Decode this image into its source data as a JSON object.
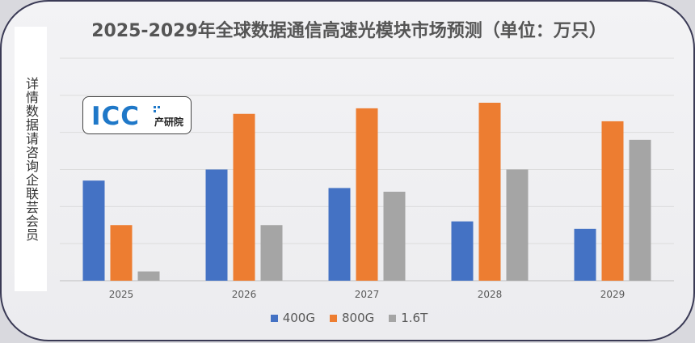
{
  "chart_data": {
    "type": "bar",
    "title": "2025-2029年全球数据通信高速光模块市场预测（单位：万只）",
    "categories": [
      "2025",
      "2026",
      "2027",
      "2028",
      "2029"
    ],
    "series": [
      {
        "name": "400G",
        "color": "#4472c4",
        "values": [
          270,
          300,
          250,
          160,
          140
        ]
      },
      {
        "name": "800G",
        "color": "#ed7d31",
        "values": [
          150,
          450,
          465,
          480,
          430
        ]
      },
      {
        "name": "1.6T",
        "color": "#a5a5a5",
        "values": [
          25,
          150,
          240,
          300,
          380
        ]
      }
    ],
    "ylim": [
      0,
      600
    ],
    "grid": true,
    "legend_position": "bottom"
  },
  "side_banner": {
    "text": "详情数据请咨询企联芸会员"
  },
  "logo": {
    "text": "ICC",
    "subtext": "产研院",
    "color": "#1f78c8"
  }
}
